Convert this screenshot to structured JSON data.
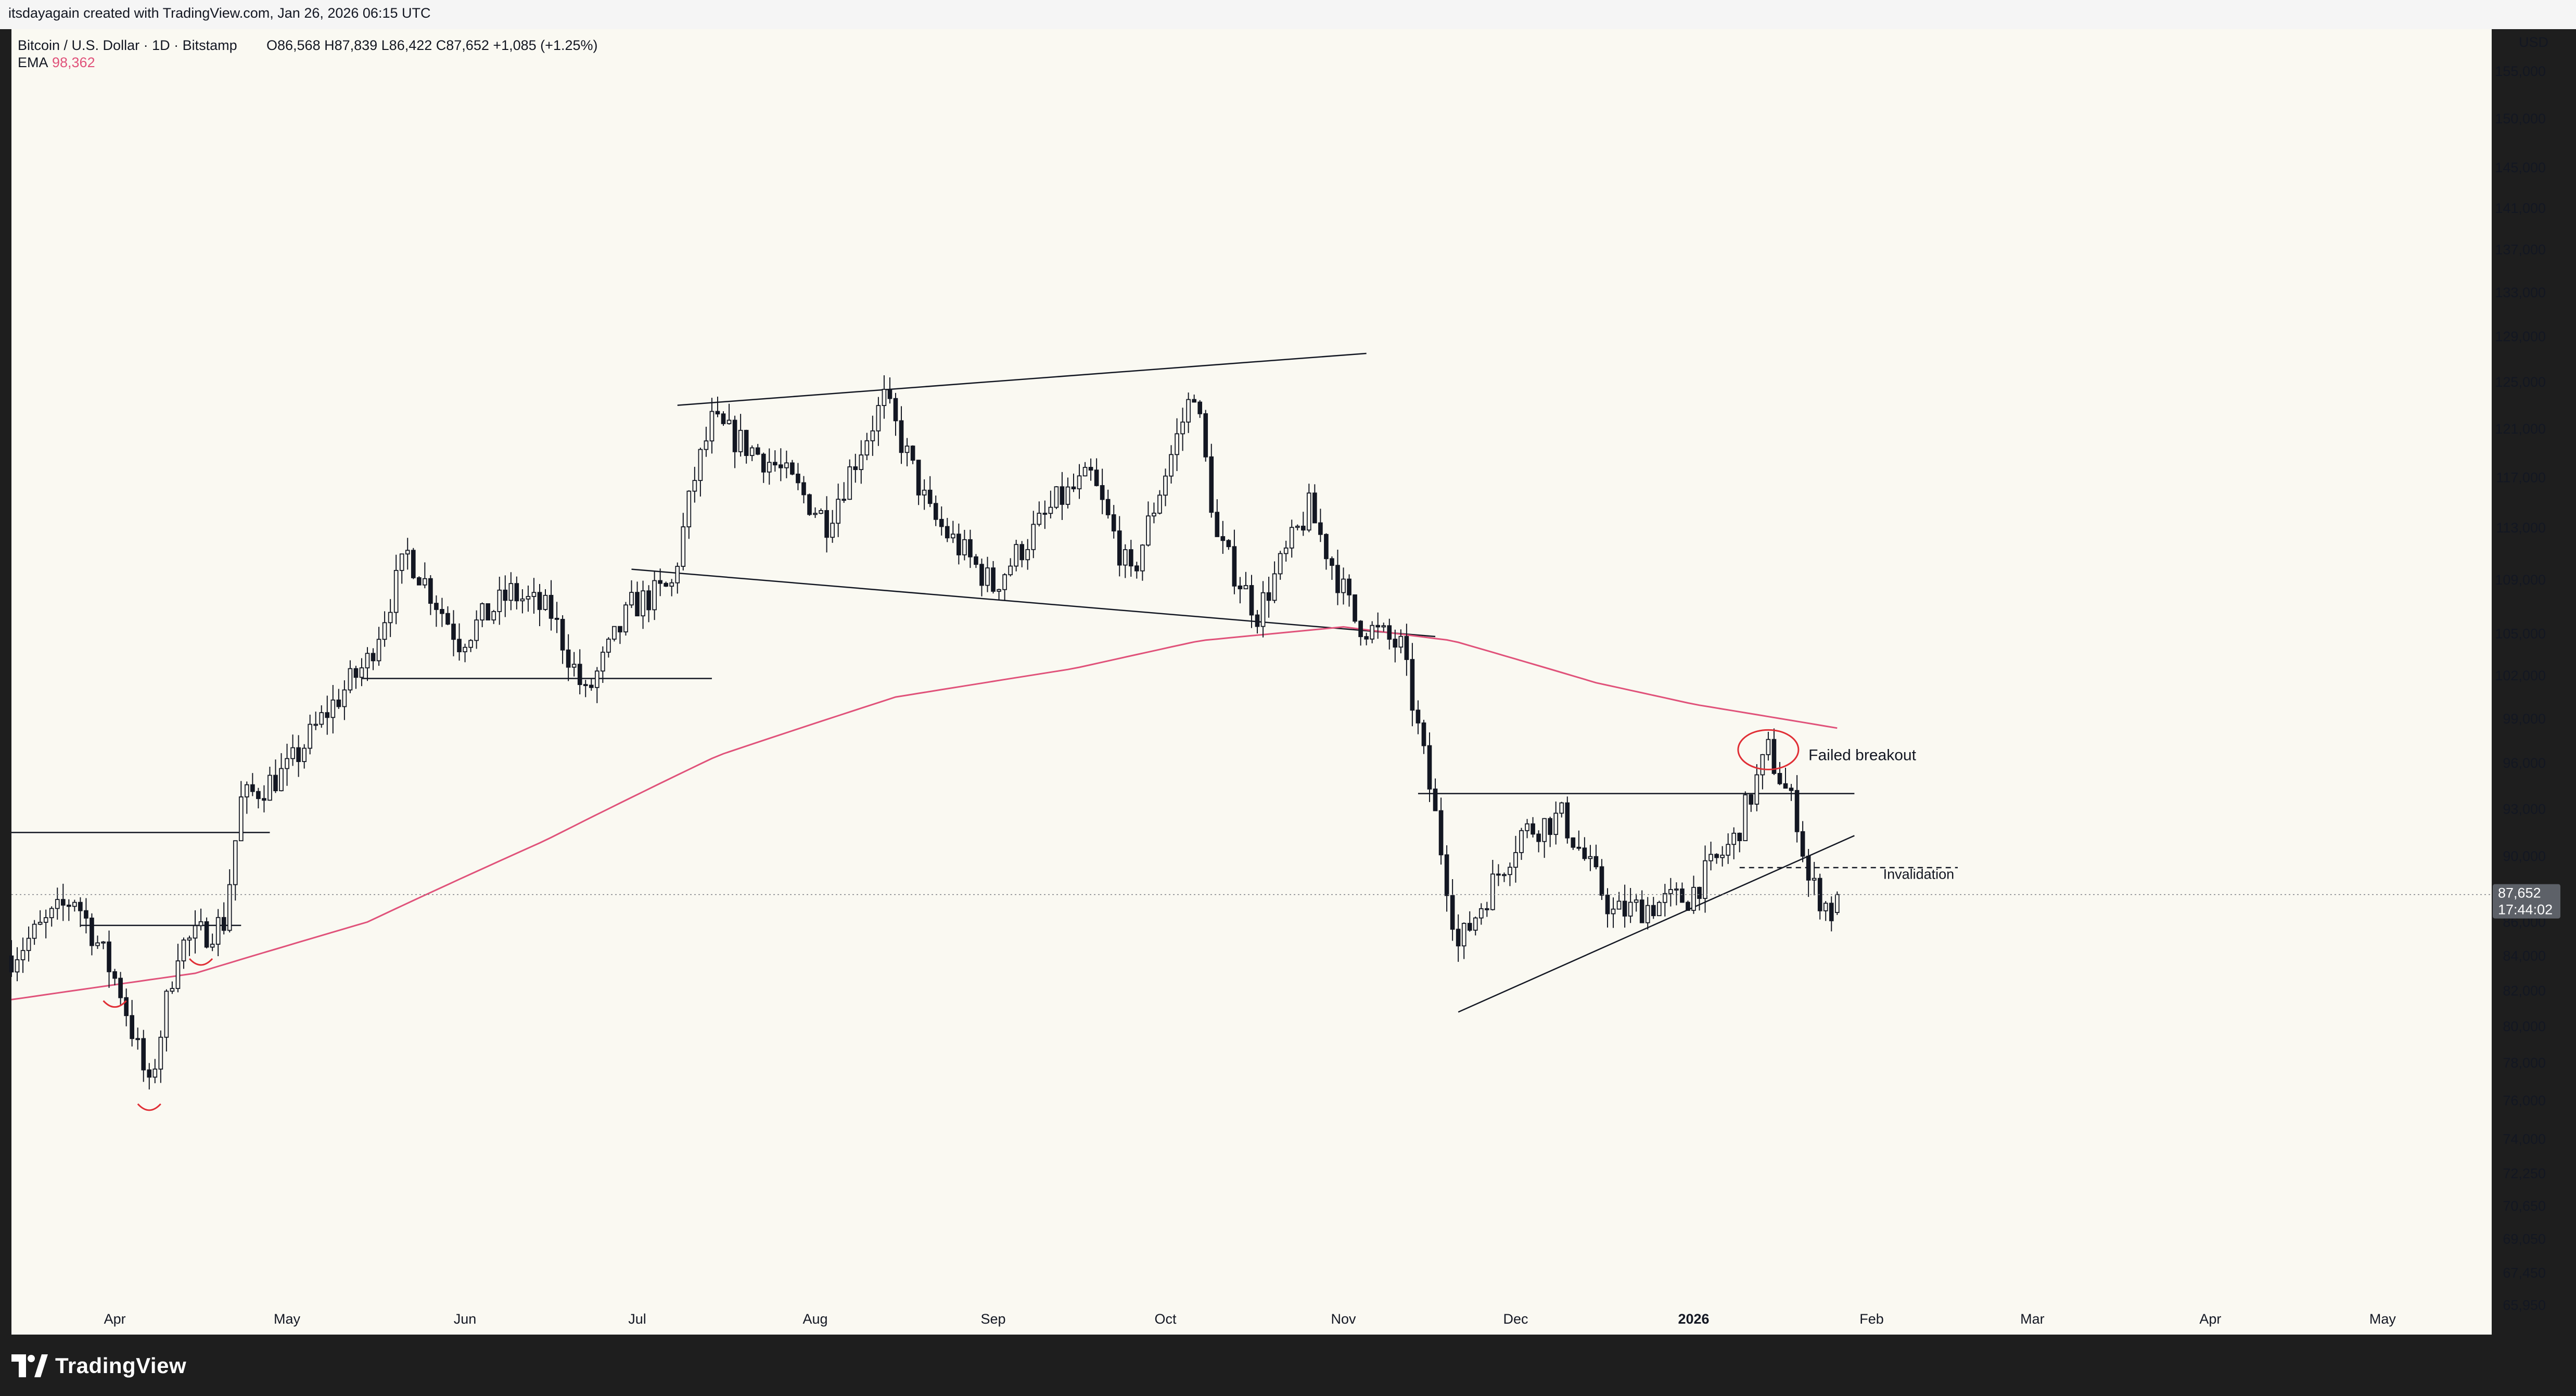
{
  "header": {
    "attribution": "itsdayagain created with TradingView.com, Jan 26, 2026 06:15 UTC"
  },
  "legend": {
    "symbol": "Bitcoin / U.S. Dollar · 1D · Bitstamp",
    "ohlc": "O86,568  H87,839  L86,422  C87,652  +1,085 (+1.25%)",
    "ema_label": "EMA",
    "ema_value": "98,362"
  },
  "price_axis": {
    "currency": "USD",
    "last_price": "87,652",
    "countdown": "17:44:02"
  },
  "annotations": {
    "failed_breakout": "Failed breakout",
    "invalidation": "Invalidation"
  },
  "footer": {
    "brand": "TradingView"
  },
  "colors": {
    "background": "#faf9f2",
    "candle": "#131722",
    "ema": "#e0527a",
    "annotation_red": "#e02e35"
  },
  "icons": [
    "tradingview-logo-icon"
  ],
  "chart_data": {
    "type": "candlestick",
    "symbol": "BTCUSD",
    "interval": "1D",
    "exchange": "Bitstamp",
    "scale": "log",
    "x_ticks": [
      "Apr",
      "May",
      "Jun",
      "Jul",
      "Aug",
      "Sep",
      "Oct",
      "Nov",
      "Dec",
      "2026",
      "Feb",
      "Mar",
      "Apr",
      "May"
    ],
    "y_ticks": [
      155000,
      150000,
      145000,
      141000,
      137000,
      133000,
      129000,
      125000,
      121000,
      117000,
      113000,
      109000,
      105000,
      102000,
      99000,
      96000,
      93000,
      90000,
      86000,
      84000,
      82000,
      80000,
      78000,
      76000,
      74000,
      72250,
      70650,
      69050,
      67450,
      65950
    ],
    "ylim": [
      65000,
      158000
    ],
    "price_path": [
      [
        "2025-03-14",
        84000
      ],
      [
        "2025-03-25",
        87500
      ],
      [
        "2025-04-02",
        82000
      ],
      [
        "2025-04-07",
        76500
      ],
      [
        "2025-04-12",
        84500
      ],
      [
        "2025-04-20",
        86000
      ],
      [
        "2025-04-23",
        93500
      ],
      [
        "2025-05-01",
        95500
      ],
      [
        "2025-05-08",
        99500
      ],
      [
        "2025-05-15",
        103000
      ],
      [
        "2025-05-22",
        111000
      ],
      [
        "2025-05-31",
        104500
      ],
      [
        "2025-06-09",
        108000
      ],
      [
        "2025-06-16",
        106500
      ],
      [
        "2025-06-22",
        100500
      ],
      [
        "2025-06-30",
        107000
      ],
      [
        "2025-07-07",
        108500
      ],
      [
        "2025-07-11",
        117000
      ],
      [
        "2025-07-14",
        121500
      ],
      [
        "2025-07-25",
        118000
      ],
      [
        "2025-08-03",
        113500
      ],
      [
        "2025-08-13",
        123500
      ],
      [
        "2025-08-21",
        114000
      ],
      [
        "2025-09-01",
        108500
      ],
      [
        "2025-09-12",
        115000
      ],
      [
        "2025-09-18",
        117000
      ],
      [
        "2025-09-25",
        109000
      ],
      [
        "2025-10-06",
        124500
      ],
      [
        "2025-10-10",
        112000
      ],
      [
        "2025-10-17",
        106500
      ],
      [
        "2025-10-26",
        114500
      ],
      [
        "2025-11-03",
        106000
      ],
      [
        "2025-11-11",
        104000
      ],
      [
        "2025-11-17",
        92500
      ],
      [
        "2025-11-21",
        84500
      ],
      [
        "2025-12-02",
        91500
      ],
      [
        "2025-12-09",
        92500
      ],
      [
        "2025-12-18",
        86500
      ],
      [
        "2025-12-31",
        87500
      ],
      [
        "2026-01-08",
        91000
      ],
      [
        "2026-01-14",
        96800
      ],
      [
        "2026-01-19",
        92500
      ],
      [
        "2026-01-21",
        88500
      ],
      [
        "2026-01-25",
        86568
      ],
      [
        "2026-01-26",
        87652
      ]
    ],
    "last_candle": {
      "date": "2026-01-26",
      "open": 86568,
      "high": 87839,
      "low": 86422,
      "close": 87652,
      "change": 1085,
      "change_pct": 1.25
    },
    "ema_series": [
      [
        "2025-03-14",
        81500
      ],
      [
        "2025-04-15",
        83000
      ],
      [
        "2025-05-15",
        86000
      ],
      [
        "2025-06-15",
        91000
      ],
      [
        "2025-07-15",
        96500
      ],
      [
        "2025-08-15",
        100500
      ],
      [
        "2025-09-15",
        102500
      ],
      [
        "2025-10-07",
        104500
      ],
      [
        "2025-11-01",
        105500
      ],
      [
        "2025-11-20",
        104500
      ],
      [
        "2025-12-15",
        101500
      ],
      [
        "2026-01-01",
        100000
      ],
      [
        "2026-01-26",
        98362
      ]
    ],
    "trendlines": [
      {
        "from": [
          "2025-07-08",
          123000
        ],
        "to": [
          "2025-11-05",
          127500
        ]
      },
      {
        "from": [
          "2025-06-30",
          109800
        ],
        "to": [
          "2025-11-17",
          104800
        ]
      },
      {
        "from": [
          "2025-11-21",
          80800
        ],
        "to": [
          "2026-01-29",
          91300
        ]
      }
    ],
    "horizontal_levels": [
      {
        "value": 101800,
        "from": "2025-05-14",
        "to": "2025-07-14"
      },
      {
        "value": 91500,
        "from": "2025-03-14",
        "to": "2025-04-28"
      },
      {
        "value": 85800,
        "from": "2025-03-26",
        "to": "2025-04-23"
      },
      {
        "value": 94000,
        "from": "2025-11-14",
        "to": "2026-01-29"
      },
      {
        "value": 89300,
        "from": "2026-01-09",
        "to": "2026-02-16",
        "style": "dashed",
        "label": "Invalidation"
      }
    ]
  }
}
